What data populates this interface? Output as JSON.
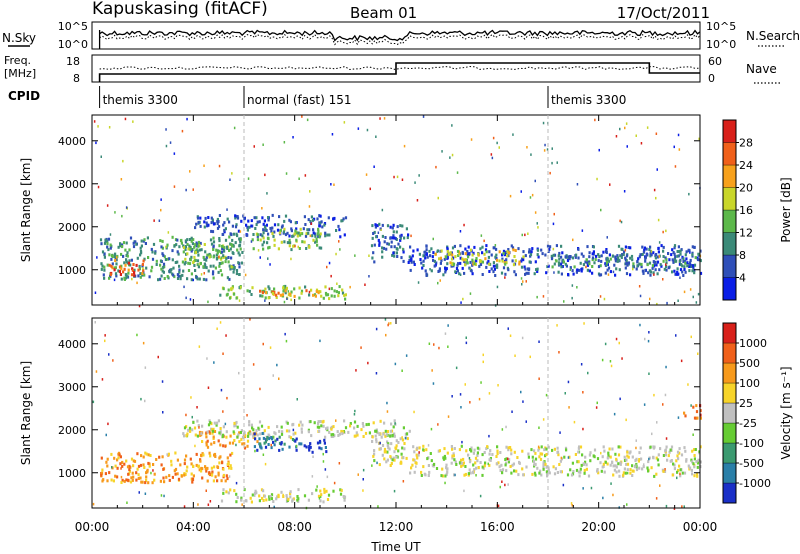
{
  "header": {
    "station": "Kapuskasing (fitACF)",
    "beam": "Beam 01",
    "date": "17/Oct/2011"
  },
  "strips": {
    "nsky_label": "N.Sky",
    "nsky_ticks": [
      "10^5",
      "10^0"
    ],
    "nsearch_label": "N.Search",
    "nsearch_ticks": [
      "10^5",
      "10^0"
    ],
    "freq_label": "Freq.",
    "freq_unit": "[MHz]",
    "freq_ticks": [
      "18",
      "8"
    ],
    "nave_label": "Nave",
    "nave_ticks": [
      "60",
      "0"
    ],
    "cpid_label": "CPID",
    "cpid_segments": [
      {
        "label": "themis 3300",
        "start": 0.3,
        "end": 6.0
      },
      {
        "label": "normal (fast) 151",
        "start": 6.0,
        "end": 18.0
      },
      {
        "label": "themis 3300",
        "start": 18.0,
        "end": 24.0
      }
    ]
  },
  "chart_data": [
    {
      "type": "heatmap",
      "name": "power",
      "ylabel": "Slant Range [km]",
      "xlabel": "Time UT",
      "xlim": [
        0,
        24
      ],
      "ylim": [
        180,
        4600
      ],
      "yticks": [
        1000,
        2000,
        3000,
        4000
      ],
      "xticks": [
        "00:00",
        "04:00",
        "08:00",
        "12:00",
        "16:00",
        "20:00",
        "00:00"
      ],
      "colorbar": {
        "label": "Power [dB]",
        "ticks": [
          "4",
          "8",
          "12",
          "16",
          "20",
          "24",
          "28"
        ],
        "colors": [
          "#0a1ee6",
          "#2f4fb8",
          "#3b8a78",
          "#5cb84a",
          "#c9d62a",
          "#f7a11c",
          "#f0601a",
          "#d8201a"
        ]
      },
      "bands": [
        {
          "t0": 0.3,
          "t1": 6,
          "r0": 800,
          "r1": 1800,
          "level": 2
        },
        {
          "t0": 0.6,
          "t1": 2,
          "r0": 880,
          "r1": 1250,
          "level": 6
        },
        {
          "t0": 3.5,
          "t1": 5.5,
          "r0": 1100,
          "r1": 1700,
          "level": 3
        },
        {
          "t0": 4,
          "t1": 10,
          "r0": 1800,
          "r1": 2300,
          "level": 1
        },
        {
          "t0": 6.3,
          "t1": 9,
          "r0": 1500,
          "r1": 2000,
          "level": 3
        },
        {
          "t0": 5,
          "t1": 10,
          "r0": 350,
          "r1": 650,
          "level": 3
        },
        {
          "t0": 6.5,
          "t1": 9,
          "r0": 400,
          "r1": 550,
          "level": 5
        },
        {
          "t0": 11,
          "t1": 12.5,
          "r0": 1200,
          "r1": 2100,
          "level": 1
        },
        {
          "t0": 12.5,
          "t1": 24,
          "r0": 900,
          "r1": 1600,
          "level": 1
        },
        {
          "t0": 13.5,
          "t1": 17,
          "r0": 1150,
          "r1": 1500,
          "level": 4
        },
        {
          "t0": 18,
          "t1": 24,
          "r0": 1100,
          "r1": 1400,
          "level": 2
        }
      ]
    },
    {
      "type": "heatmap",
      "name": "velocity",
      "ylabel": "Slant Range [km]",
      "xlabel": "Time UT",
      "xlim": [
        0,
        24
      ],
      "ylim": [
        180,
        4600
      ],
      "yticks": [
        1000,
        2000,
        3000,
        4000
      ],
      "xticks": [
        "00:00",
        "04:00",
        "08:00",
        "12:00",
        "16:00",
        "20:00",
        "00:00"
      ],
      "colorbar": {
        "label": "Velocity [m s⁻¹]",
        "ticks": [
          "1000",
          "500",
          "100",
          "25",
          "-25",
          "-100",
          "-500",
          "-1000"
        ],
        "colors": [
          "#1a30c8",
          "#2a7fa8",
          "#3b9a70",
          "#66cc33",
          "#c0c0c0",
          "#f7d42a",
          "#f79a1c",
          "#f0601a",
          "#d8201a"
        ]
      },
      "bands": [
        {
          "t0": 0.3,
          "t1": 5.5,
          "r0": 800,
          "r1": 1500,
          "level": 6
        },
        {
          "t0": 4.2,
          "t1": 6.5,
          "r0": 1600,
          "r1": 2000,
          "level": 6
        },
        {
          "t0": 3.5,
          "t1": 12,
          "r0": 1850,
          "r1": 2250,
          "level": 4
        },
        {
          "t0": 6.3,
          "t1": 8.3,
          "r0": 1550,
          "r1": 1950,
          "level": 1
        },
        {
          "t0": 8.3,
          "t1": 9.3,
          "r0": 1500,
          "r1": 1800,
          "level": 0
        },
        {
          "t0": 5,
          "t1": 10,
          "r0": 350,
          "r1": 650,
          "level": 4
        },
        {
          "t0": 11,
          "t1": 12.5,
          "r0": 1200,
          "r1": 2100,
          "level": 4
        },
        {
          "t0": 12.5,
          "t1": 24,
          "r0": 950,
          "r1": 1650,
          "level": 4
        },
        {
          "t0": 23.3,
          "t1": 24,
          "r0": 2300,
          "r1": 2600,
          "level": 7
        }
      ]
    }
  ]
}
